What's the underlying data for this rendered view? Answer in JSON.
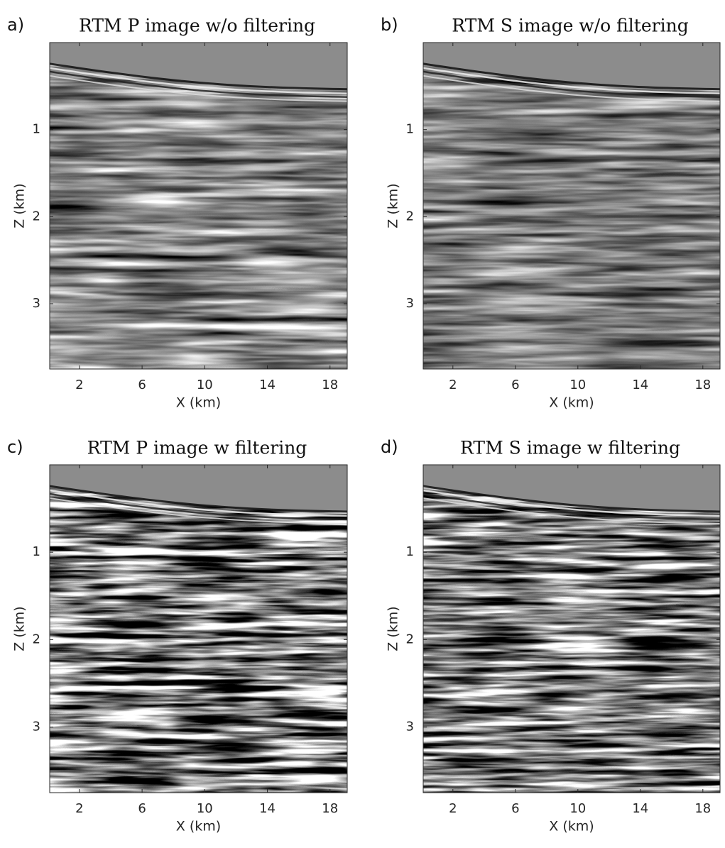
{
  "chart_data": [
    {
      "type": "image",
      "panel_label": "a)",
      "title": "RTM P image w/o filtering",
      "xlabel": "X (km)",
      "ylabel": "Z (km)",
      "xlim": [
        0.1,
        19.1
      ],
      "xticks": [
        2,
        6,
        10,
        14,
        18
      ],
      "ylim": [
        0,
        3.75
      ],
      "yticks": [
        1,
        2,
        3
      ],
      "y_reversed": true,
      "colormap": "gray"
    },
    {
      "type": "image",
      "panel_label": "b)",
      "title": "RTM S image w/o filtering",
      "xlabel": "X (km)",
      "ylabel": "Z (km)",
      "xlim": [
        0.1,
        19.1
      ],
      "xticks": [
        2,
        6,
        10,
        14,
        18
      ],
      "ylim": [
        0,
        3.75
      ],
      "yticks": [
        1,
        2,
        3
      ],
      "y_reversed": true,
      "colormap": "gray"
    },
    {
      "type": "image",
      "panel_label": "c)",
      "title": "RTM P image w filtering",
      "xlabel": "X (km)",
      "ylabel": "Z (km)",
      "xlim": [
        0.1,
        19.1
      ],
      "xticks": [
        2,
        6,
        10,
        14,
        18
      ],
      "ylim": [
        0,
        3.75
      ],
      "yticks": [
        1,
        2,
        3
      ],
      "y_reversed": true,
      "colormap": "gray"
    },
    {
      "type": "image",
      "panel_label": "d)",
      "title": "RTM S image w filtering",
      "xlabel": "X (km)",
      "ylabel": "Z (km)",
      "xlim": [
        0.1,
        19.1
      ],
      "xticks": [
        2,
        6,
        10,
        14,
        18
      ],
      "ylim": [
        0,
        3.75
      ],
      "yticks": [
        1,
        2,
        3
      ],
      "y_reversed": true,
      "colormap": "gray"
    }
  ]
}
